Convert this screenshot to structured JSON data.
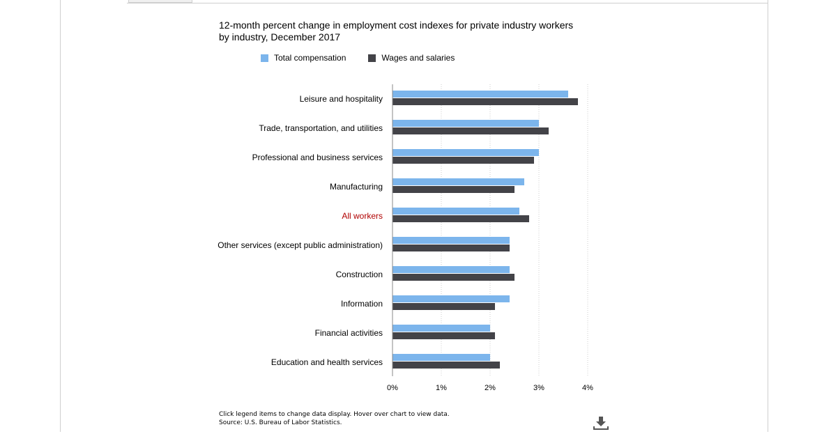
{
  "chart_data": {
    "type": "bar",
    "orientation": "horizontal",
    "title_lines": [
      "12-month percent change in employment cost indexes for private industry workers",
      "by industry, December 2017"
    ],
    "categories": [
      "Leisure and hospitality",
      "Trade, transportation, and utilities",
      "Professional and business services",
      "Manufacturing",
      "All workers",
      "Other services (except public administration)",
      "Construction",
      "Information",
      "Financial activities",
      "Education and health services"
    ],
    "highlight_category": "All workers",
    "highlight_color": "#b00000",
    "series": [
      {
        "name": "Total compensation",
        "color": "#7cb5ec",
        "values": [
          3.6,
          3.0,
          3.0,
          2.7,
          2.6,
          2.4,
          2.4,
          2.4,
          2.0,
          2.0
        ]
      },
      {
        "name": "Wages and salaries",
        "color": "#434348",
        "values": [
          3.8,
          3.2,
          2.9,
          2.5,
          2.8,
          2.4,
          2.5,
          2.1,
          2.1,
          2.2
        ]
      }
    ],
    "xlim": [
      0,
      4
    ],
    "xticks": [
      "0%",
      "1%",
      "2%",
      "3%",
      "4%"
    ],
    "grid": true,
    "legend_position": "top"
  },
  "footnote": {
    "line1": "Click legend items to change data display. Hover over chart to view data.",
    "line2": "Source: U.S. Bureau of Labor Statistics."
  },
  "download_icon": "download-icon"
}
